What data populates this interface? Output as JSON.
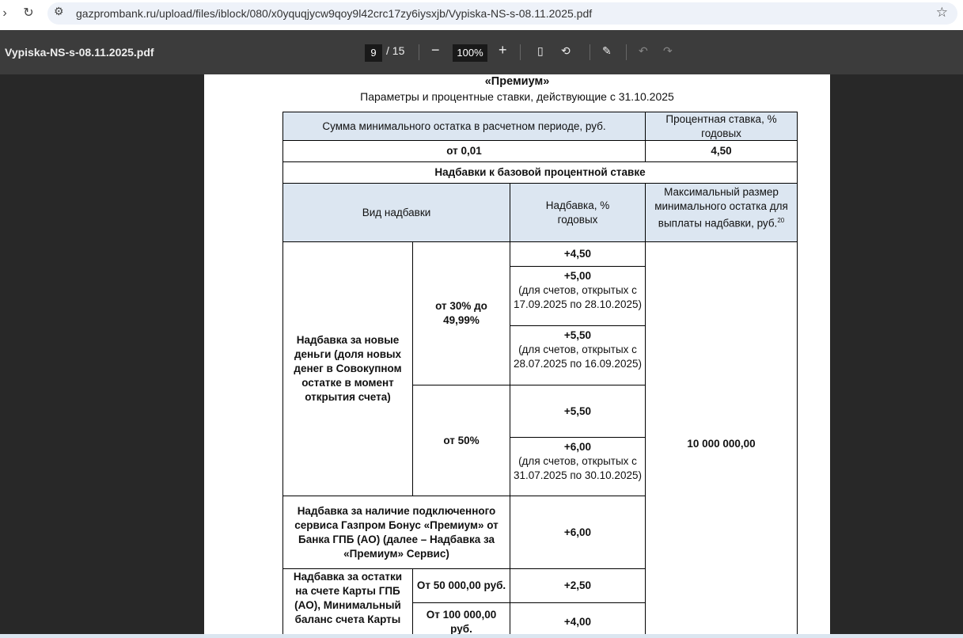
{
  "browser": {
    "url": "gazprombank.ru/upload/files/iblock/080/x0yquqjycw9qoy9l42crc17zy6iysxjb/Vypiska-NS-s-08.11.2025.pdf"
  },
  "viewer": {
    "filename": "Vypiska-NS-s-08.11.2025.pdf",
    "page": "9",
    "total": "/ 15",
    "zoom": "100%"
  },
  "doc": {
    "title": "«Премиум»",
    "subtitle": "Параметры и процентные ставки, действующие с 31.10.2025",
    "h1a": "Сумма минимального остатка в расчетном периоде, руб.",
    "h1b": "Процентная ставка, % годовых",
    "r1a": "от 0,01",
    "r1b": "4,50",
    "section": "Надбавки к базовой процентной ставке",
    "h2a": "Вид надбавки",
    "h2b": "Надбавка, % годовых",
    "h2c": "Максимальный размер минимального остатка для выплаты надбавки, руб.",
    "h2c_sup": "20",
    "newmoney": "Надбавка за новые деньги (доля новых денег в Совокупном остатке в момент открытия счета)",
    "range1": "от 30% до 49,99%",
    "range2": "от 50%",
    "v1": "+4,50",
    "v2": "+5,00",
    "v2n": "(для счетов, открытых с 17.09.2025 по 28.10.2025)",
    "v3": "+5,50",
    "v3n": "(для счетов, открытых с 28.07.2025 по 16.09.2025)",
    "v4": "+5,50",
    "v5": "+6,00",
    "v5n": "(для счетов, открытых с 31.07.2025 по 30.10.2025)",
    "max": "10 000 000,00",
    "premium": "Надбавка за наличие подключенного сервиса Газпром Бонус «Премиум» от Банка ГПБ (АО) (далее – Надбавка за «Премиум» Сервис)",
    "premium_v": "+6,00",
    "card": "Надбавка за остатки на счете Карты ГПБ (АО), Минимальный баланс счета Карты",
    "card1": "От 50 000,00 руб.",
    "card1v": "+2,50",
    "card2": "От 100 000,00 руб.",
    "card2v": "+4,00"
  }
}
